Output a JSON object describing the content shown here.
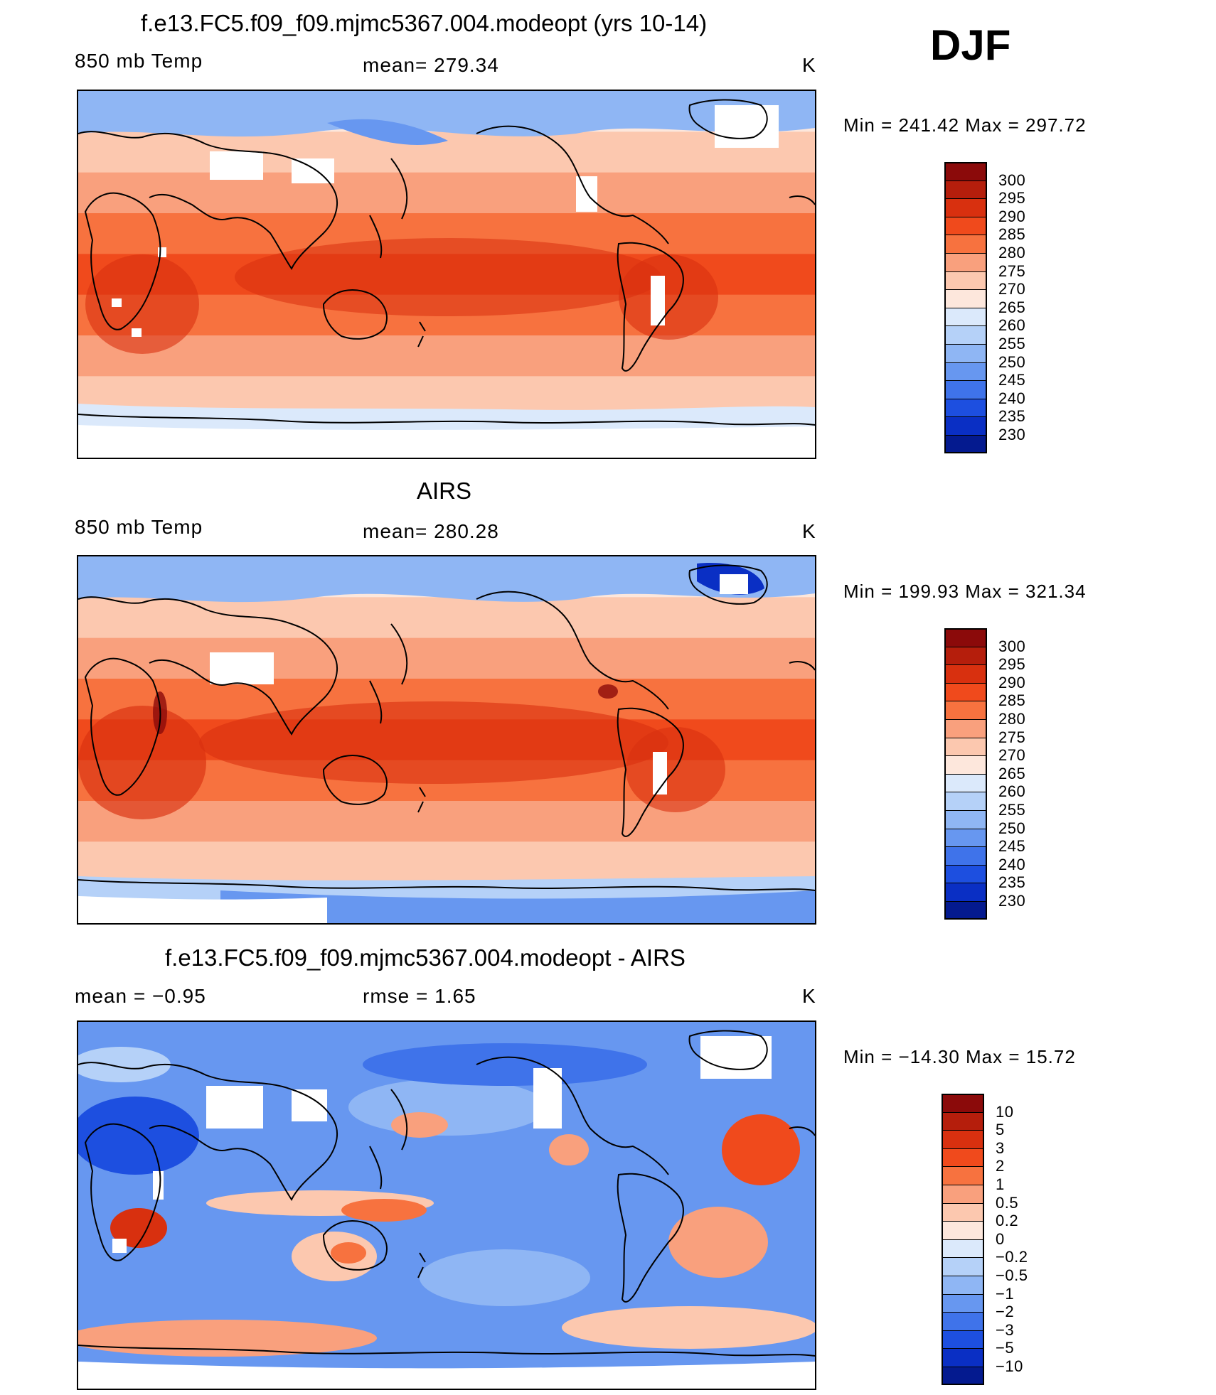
{
  "season": "DJF",
  "panels": [
    {
      "title": "f.e13.FC5.f09_f09.mjmc5367.004.modeopt (yrs 10-14)",
      "variable": "850 mb Temp",
      "stat": "mean=  279.34",
      "units": "K",
      "minmax": "Min  =  241.42  Max  =  297.72"
    },
    {
      "title": "AIRS",
      "variable": "850 mb Temp",
      "stat": "mean=  280.28",
      "units": "K",
      "minmax": "Min  =  199.93  Max  =  321.34"
    },
    {
      "title": "f.e13.FC5.f09_f09.mjmc5367.004.modeopt - AIRS",
      "variable": "mean  =    −0.95",
      "stat": "rmse  =     1.65",
      "units": "K",
      "minmax": "Min  =  −14.30  Max  =    15.72"
    }
  ],
  "colorbars": {
    "temp": {
      "labels": [
        "300",
        "295",
        "290",
        "285",
        "280",
        "275",
        "270",
        "265",
        "260",
        "255",
        "250",
        "245",
        "240",
        "235",
        "230"
      ],
      "colors": [
        "#8b0a0a",
        "#b51e0c",
        "#d8300f",
        "#f04a1c",
        "#f7723f",
        "#f9a07d",
        "#fcc8af",
        "#fde7dc",
        "#dbe9fb",
        "#b5d1f8",
        "#8fb6f4",
        "#6797f0",
        "#3f73ea",
        "#1d4fe0",
        "#0a2fc4",
        "#041a8f"
      ]
    },
    "diff": {
      "labels": [
        "10",
        "5",
        "3",
        "2",
        "1",
        "0.5",
        "0.2",
        "0",
        "−0.2",
        "−0.5",
        "−1",
        "−2",
        "−3",
        "−5",
        "−10"
      ],
      "colors": [
        "#8b0a0a",
        "#b51e0c",
        "#d8300f",
        "#f04a1c",
        "#f7723f",
        "#f9a07d",
        "#fcc8af",
        "#fde7dc",
        "#dbe9fb",
        "#b5d1f8",
        "#8fb6f4",
        "#6797f0",
        "#3f73ea",
        "#1d4fe0",
        "#0a2fc4",
        "#041a8f"
      ]
    }
  },
  "map_fields": {
    "temp_model": {
      "bands": [
        "#fde7dc",
        "#fcc8af",
        "#f9a07d",
        "#f7723f",
        "#f04a1c",
        "#f7723f",
        "#f9a07d",
        "#fcc8af",
        "#dbe9fb"
      ]
    },
    "temp_obs": {
      "bands": [
        "#fde7dc",
        "#fcc8af",
        "#f9a07d",
        "#f7723f",
        "#f04a1c",
        "#f7723f",
        "#f9a07d",
        "#fcc8af",
        "#dbe9fb"
      ]
    },
    "diff": {
      "base": "#6797f0"
    }
  }
}
